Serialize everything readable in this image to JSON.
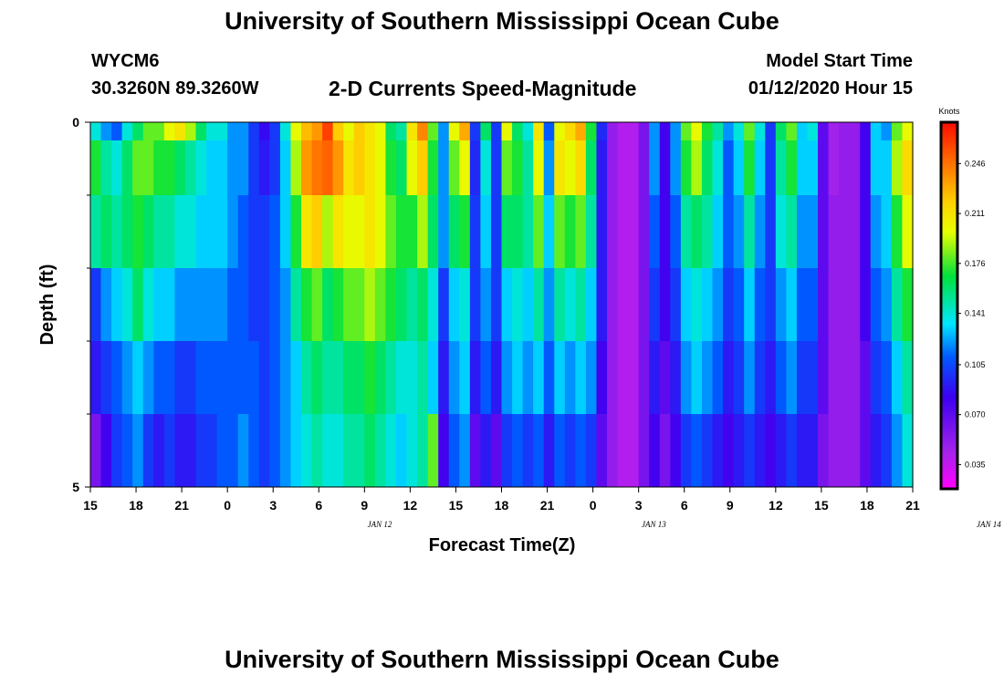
{
  "header": {
    "title": "University of Southern Mississippi Ocean Cube",
    "station_id": "WYCM6",
    "coordinates": "30.3260N 89.3260W",
    "subtitle": "2-D Currents Speed-Magnitude",
    "start_label": "Model Start Time",
    "start_value": "01/12/2020 Hour 15"
  },
  "footer": {
    "title": "University of Southern Mississippi Ocean Cube"
  },
  "chart_data": {
    "type": "heatmap",
    "title": "2-D Currents Speed-Magnitude",
    "xlabel": "Forecast Time(Z)",
    "ylabel": "Depth (ft)",
    "x_tick_labels": [
      "15",
      "18",
      "21",
      "0",
      "3",
      "6",
      "9",
      "12",
      "15",
      "18",
      "21",
      "0",
      "3",
      "6",
      "9",
      "12",
      "15",
      "18",
      "21"
    ],
    "x_date_labels": [
      {
        "label": "JAN 12",
        "hour": 19
      },
      {
        "label": "JAN 13",
        "hour": 37
      },
      {
        "label": "JAN 14",
        "hour": 59
      }
    ],
    "x_range_hours": [
      0,
      54
    ],
    "y_tick_labels": [
      "0",
      "5"
    ],
    "ylim": [
      0,
      5
    ],
    "depth_levels": [
      0,
      0.5,
      1.5,
      2.5,
      3.5,
      4.5
    ],
    "colorbar": {
      "title": "Knots",
      "tick_labels": [
        "0.246",
        "0.211",
        "0.176",
        "0.141",
        "0.105",
        "0.070",
        "0.035"
      ],
      "range": [
        0.018,
        0.275
      ]
    },
    "speed_knots_by_depth": [
      [
        0.14,
        0.12,
        0.11,
        0.14,
        0.16,
        0.18,
        0.18,
        0.2,
        0.21,
        0.19,
        0.16,
        0.14,
        0.14,
        0.12,
        0.12,
        0.1,
        0.085,
        0.1,
        0.14,
        0.2,
        0.225,
        0.235,
        0.26,
        0.22,
        0.2,
        0.22,
        0.21,
        0.2,
        0.16,
        0.15,
        0.21,
        0.24,
        0.18,
        0.12,
        0.2,
        0.23,
        0.1,
        0.16,
        0.1,
        0.2,
        0.16,
        0.14,
        0.21,
        0.11,
        0.2,
        0.215,
        0.23,
        0.17,
        0.095,
        0.05,
        0.04,
        0.04,
        0.06,
        0.12,
        0.08,
        0.12,
        0.18,
        0.2,
        0.17,
        0.15,
        0.12,
        0.14,
        0.18,
        0.14,
        0.1,
        0.16,
        0.18,
        0.13,
        0.14,
        0.07,
        0.045,
        0.05,
        0.05,
        0.08,
        0.13,
        0.12,
        0.18,
        0.2
      ],
      [
        0.17,
        0.15,
        0.14,
        0.16,
        0.18,
        0.18,
        0.17,
        0.17,
        0.16,
        0.15,
        0.14,
        0.13,
        0.13,
        0.12,
        0.12,
        0.1,
        0.09,
        0.1,
        0.13,
        0.19,
        0.235,
        0.245,
        0.25,
        0.235,
        0.21,
        0.22,
        0.21,
        0.2,
        0.17,
        0.16,
        0.2,
        0.22,
        0.17,
        0.12,
        0.18,
        0.2,
        0.095,
        0.14,
        0.1,
        0.18,
        0.17,
        0.15,
        0.2,
        0.12,
        0.21,
        0.2,
        0.215,
        0.16,
        0.09,
        0.05,
        0.04,
        0.04,
        0.06,
        0.12,
        0.08,
        0.12,
        0.17,
        0.19,
        0.16,
        0.14,
        0.11,
        0.13,
        0.17,
        0.13,
        0.1,
        0.15,
        0.17,
        0.13,
        0.13,
        0.07,
        0.045,
        0.05,
        0.05,
        0.08,
        0.13,
        0.13,
        0.19,
        0.215
      ],
      [
        0.15,
        0.16,
        0.15,
        0.16,
        0.17,
        0.16,
        0.15,
        0.15,
        0.14,
        0.14,
        0.13,
        0.13,
        0.13,
        0.12,
        0.11,
        0.1,
        0.1,
        0.11,
        0.13,
        0.17,
        0.21,
        0.22,
        0.19,
        0.21,
        0.2,
        0.2,
        0.21,
        0.2,
        0.18,
        0.17,
        0.17,
        0.19,
        0.16,
        0.12,
        0.16,
        0.17,
        0.1,
        0.13,
        0.1,
        0.16,
        0.16,
        0.15,
        0.18,
        0.13,
        0.18,
        0.17,
        0.18,
        0.15,
        0.09,
        0.05,
        0.04,
        0.04,
        0.06,
        0.11,
        0.08,
        0.11,
        0.15,
        0.16,
        0.15,
        0.13,
        0.11,
        0.12,
        0.15,
        0.12,
        0.1,
        0.14,
        0.15,
        0.12,
        0.12,
        0.07,
        0.05,
        0.05,
        0.05,
        0.08,
        0.12,
        0.13,
        0.17,
        0.2
      ],
      [
        0.1,
        0.12,
        0.13,
        0.14,
        0.16,
        0.14,
        0.13,
        0.13,
        0.12,
        0.12,
        0.12,
        0.12,
        0.12,
        0.11,
        0.11,
        0.1,
        0.1,
        0.11,
        0.12,
        0.15,
        0.17,
        0.18,
        0.16,
        0.17,
        0.18,
        0.18,
        0.19,
        0.18,
        0.17,
        0.16,
        0.15,
        0.16,
        0.14,
        0.1,
        0.13,
        0.14,
        0.1,
        0.12,
        0.1,
        0.13,
        0.14,
        0.13,
        0.15,
        0.12,
        0.15,
        0.14,
        0.15,
        0.13,
        0.09,
        0.05,
        0.04,
        0.04,
        0.06,
        0.1,
        0.08,
        0.1,
        0.13,
        0.14,
        0.13,
        0.12,
        0.1,
        0.11,
        0.13,
        0.11,
        0.1,
        0.12,
        0.13,
        0.11,
        0.11,
        0.07,
        0.05,
        0.05,
        0.05,
        0.08,
        0.11,
        0.12,
        0.15,
        0.17
      ],
      [
        0.09,
        0.1,
        0.11,
        0.12,
        0.13,
        0.12,
        0.11,
        0.11,
        0.1,
        0.1,
        0.11,
        0.11,
        0.11,
        0.11,
        0.11,
        0.11,
        0.1,
        0.11,
        0.12,
        0.13,
        0.15,
        0.16,
        0.15,
        0.15,
        0.16,
        0.16,
        0.17,
        0.16,
        0.15,
        0.14,
        0.14,
        0.15,
        0.13,
        0.09,
        0.12,
        0.13,
        0.09,
        0.11,
        0.09,
        0.12,
        0.13,
        0.12,
        0.13,
        0.11,
        0.13,
        0.12,
        0.13,
        0.12,
        0.08,
        0.05,
        0.04,
        0.04,
        0.06,
        0.09,
        0.07,
        0.09,
        0.12,
        0.13,
        0.12,
        0.11,
        0.09,
        0.1,
        0.12,
        0.1,
        0.09,
        0.11,
        0.12,
        0.1,
        0.1,
        0.07,
        0.05,
        0.05,
        0.05,
        0.07,
        0.1,
        0.11,
        0.13,
        0.15
      ],
      [
        0.06,
        0.08,
        0.1,
        0.11,
        0.12,
        0.1,
        0.09,
        0.1,
        0.09,
        0.09,
        0.1,
        0.1,
        0.11,
        0.11,
        0.12,
        0.11,
        0.1,
        0.11,
        0.12,
        0.13,
        0.14,
        0.15,
        0.14,
        0.14,
        0.15,
        0.15,
        0.16,
        0.15,
        0.14,
        0.13,
        0.14,
        0.15,
        0.18,
        0.08,
        0.11,
        0.12,
        0.07,
        0.09,
        0.07,
        0.1,
        0.11,
        0.1,
        0.11,
        0.09,
        0.11,
        0.1,
        0.11,
        0.1,
        0.07,
        0.05,
        0.04,
        0.04,
        0.06,
        0.08,
        0.06,
        0.08,
        0.1,
        0.11,
        0.1,
        0.09,
        0.08,
        0.09,
        0.1,
        0.09,
        0.08,
        0.09,
        0.1,
        0.09,
        0.09,
        0.06,
        0.05,
        0.05,
        0.05,
        0.07,
        0.09,
        0.1,
        0.12,
        0.14
      ]
    ]
  }
}
